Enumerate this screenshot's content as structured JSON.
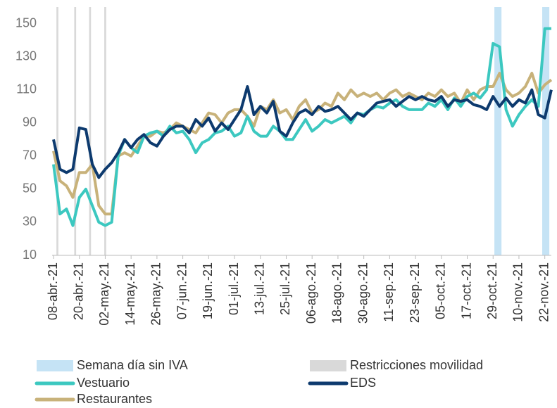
{
  "chart_data": {
    "type": "line",
    "categories": [
      "08-abr.-21",
      null,
      null,
      null,
      "20-abr.-21",
      null,
      null,
      null,
      "02-may.-21",
      null,
      null,
      null,
      "14-may.-21",
      null,
      null,
      null,
      "26-may.-21",
      null,
      null,
      null,
      "07-jun.-21",
      null,
      null,
      null,
      "19-jun.-21",
      null,
      null,
      null,
      "01-jul.-21",
      null,
      null,
      null,
      "13-jul.-21",
      null,
      null,
      null,
      "25-jul.-21",
      null,
      null,
      null,
      "06-ago.-21",
      null,
      null,
      null,
      "18-ago.-21",
      null,
      null,
      null,
      "30-ago.-21",
      null,
      null,
      null,
      "11-sep.-21",
      null,
      null,
      null,
      "23-sep.-21",
      null,
      null,
      null,
      "05-oct.-21",
      null,
      null,
      null,
      "17-oct.-21",
      null,
      null,
      null,
      "29-oct.-21",
      null,
      null,
      null,
      "10-nov.-21",
      null,
      null,
      null,
      "22-nov.-21",
      null
    ],
    "series": [
      {
        "name": "Vestuario",
        "color": "#3cc8c0",
        "values": [
          65,
          35,
          38,
          28,
          45,
          50,
          40,
          30,
          28,
          30,
          70,
          80,
          75,
          72,
          82,
          84,
          85,
          82,
          88,
          84,
          85,
          80,
          72,
          78,
          80,
          84,
          85,
          88,
          82,
          84,
          94,
          85,
          82,
          82,
          88,
          85,
          80,
          80,
          86,
          92,
          85,
          88,
          92,
          90,
          92,
          94,
          90,
          96,
          95,
          98,
          100,
          99,
          102,
          104,
          100,
          98,
          98,
          98,
          102,
          100,
          104,
          98,
          105,
          100,
          106,
          108,
          105,
          110,
          138,
          136,
          98,
          88,
          95,
          100,
          104,
          100,
          147,
          147
        ]
      },
      {
        "name": "EDS",
        "color": "#0d3a6e",
        "values": [
          80,
          62,
          60,
          62,
          87,
          86,
          65,
          57,
          62,
          66,
          72,
          80,
          75,
          80,
          83,
          78,
          76,
          82,
          86,
          88,
          88,
          84,
          92,
          88,
          93,
          85,
          90,
          86,
          92,
          98,
          112,
          95,
          100,
          96,
          103,
          85,
          82,
          90,
          96,
          98,
          95,
          100,
          97,
          98,
          100,
          96,
          92,
          96,
          94,
          98,
          102,
          103,
          104,
          100,
          103,
          106,
          104,
          106,
          104,
          103,
          106,
          100,
          104,
          103,
          104,
          101,
          100,
          98,
          106,
          100,
          105,
          100,
          104,
          102,
          110,
          95,
          93,
          110
        ]
      },
      {
        "name": "Restaurantes",
        "color": "#c8b27a",
        "values": [
          73,
          55,
          52,
          45,
          60,
          60,
          65,
          40,
          35,
          35,
          70,
          72,
          70,
          76,
          82,
          82,
          85,
          84,
          86,
          90,
          88,
          86,
          84,
          90,
          96,
          95,
          90,
          96,
          98,
          98,
          94,
          88,
          100,
          98,
          104,
          96,
          98,
          92,
          100,
          104,
          96,
          98,
          102,
          100,
          108,
          104,
          110,
          106,
          108,
          106,
          108,
          104,
          108,
          110,
          106,
          108,
          106,
          104,
          108,
          106,
          110,
          106,
          108,
          102,
          110,
          104,
          110,
          112,
          112,
          120,
          110,
          106,
          108,
          112,
          120,
          108,
          113,
          116
        ]
      }
    ],
    "shaded_regions": [
      {
        "name": "Semana día sin IVA",
        "color": "#c5e3f5",
        "ranges": [
          [
            68.2,
            69.3
          ],
          [
            75.6,
            76.7
          ]
        ]
      },
      {
        "name": "Restricciones movilidad",
        "color": "#d9d9d9",
        "ranges": [
          [
            0.45,
            0.75
          ],
          [
            3.2,
            3.5
          ],
          [
            5.5,
            5.8
          ],
          [
            7.85,
            8.15
          ]
        ]
      }
    ],
    "ylim": [
      10,
      160
    ],
    "yticks": [
      10,
      30,
      50,
      70,
      90,
      110,
      130,
      150
    ]
  }
}
